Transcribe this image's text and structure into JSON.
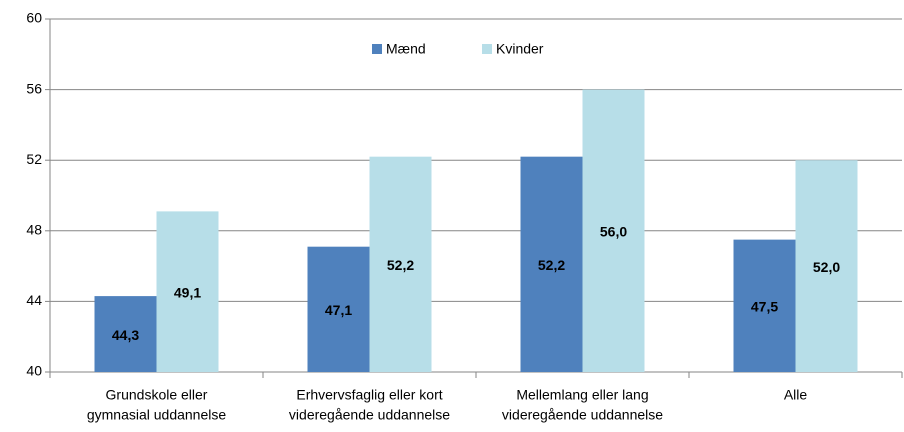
{
  "chart_data": {
    "type": "bar",
    "categories": [
      [
        "Grundskole eller",
        "gymnasial uddannelse"
      ],
      [
        "Erhvervsfaglig eller kort",
        "videregående uddannelse"
      ],
      [
        "Mellemlang eller lang",
        "videregående uddannelse"
      ],
      [
        "Alle"
      ]
    ],
    "series": [
      {
        "name": "Mænd",
        "color": "#4f81bd",
        "values": [
          44.3,
          47.1,
          52.2,
          47.5
        ],
        "value_labels": [
          "44,3",
          "47,1",
          "52,2",
          "47,5"
        ]
      },
      {
        "name": "Kvinder",
        "color": "#b7dee8",
        "values": [
          49.1,
          52.2,
          56.0,
          52.0
        ],
        "value_labels": [
          "49,1",
          "52,2",
          "56,0",
          "52,0"
        ]
      }
    ],
    "ylim": [
      40,
      60
    ],
    "yticks": [
      40,
      44,
      48,
      52,
      56,
      60
    ],
    "grid": true,
    "legend": "top"
  }
}
